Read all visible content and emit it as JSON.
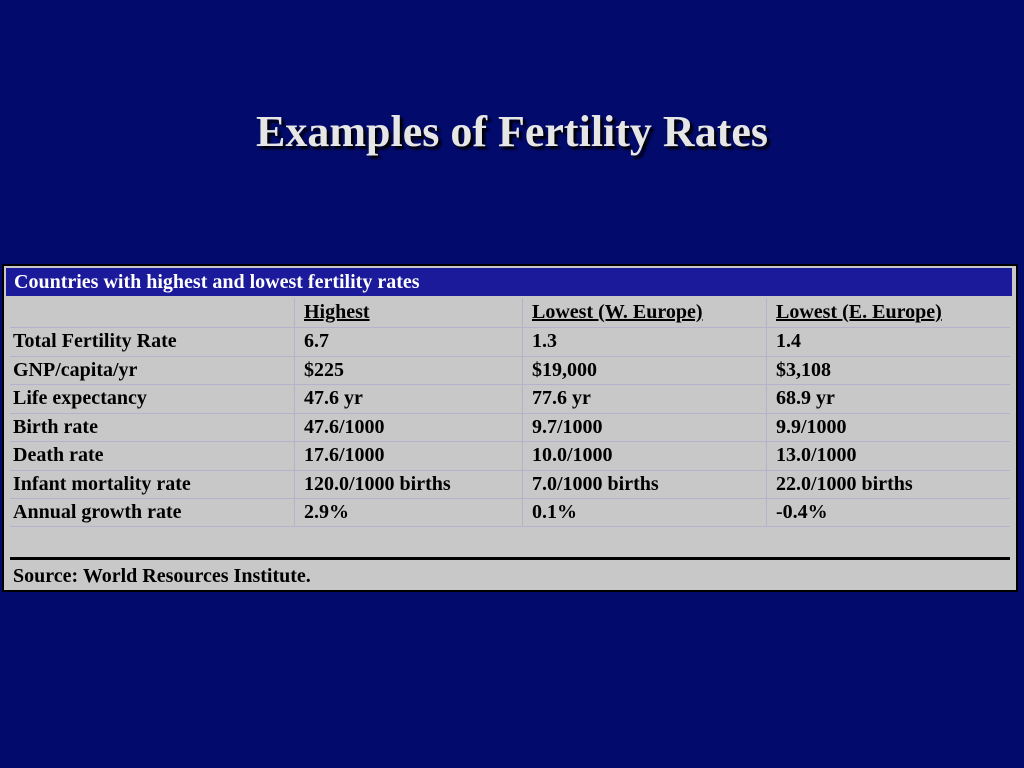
{
  "title": "Examples of Fertility Rates",
  "table": {
    "caption": "Countries with highest and lowest fertility rates",
    "columns": [
      "",
      "Highest",
      "Lowest (W. Europe)",
      "Lowest (E. Europe)"
    ],
    "rows": [
      {
        "label": "Total Fertility Rate",
        "values": [
          "6.7",
          "1.3",
          "1.4"
        ]
      },
      {
        "label": "GNP/capita/yr",
        "values": [
          "$225",
          "$19,000",
          "$3,108"
        ]
      },
      {
        "label": "Life expectancy",
        "values": [
          "47.6 yr",
          "77.6 yr",
          "68.9 yr"
        ]
      },
      {
        "label": "Birth rate",
        "values": [
          "47.6/1000",
          "9.7/1000",
          "9.9/1000"
        ]
      },
      {
        "label": "Death rate",
        "values": [
          "17.6/1000",
          "10.0/1000",
          "13.0/1000"
        ]
      },
      {
        "label": "Infant mortality rate",
        "values": [
          "120.0/1000 births",
          "7.0/1000 births",
          "22.0/1000 births"
        ]
      },
      {
        "label": "Annual growth rate",
        "values": [
          "2.9%",
          "0.1%",
          "-0.4%"
        ]
      }
    ],
    "source": "Source: World Resources Institute."
  },
  "colors": {
    "background": "#020a6b",
    "caption_bar": "#1a1a9a",
    "table_fill": "#c8c8c8",
    "title_text": "#e6e6e6"
  }
}
